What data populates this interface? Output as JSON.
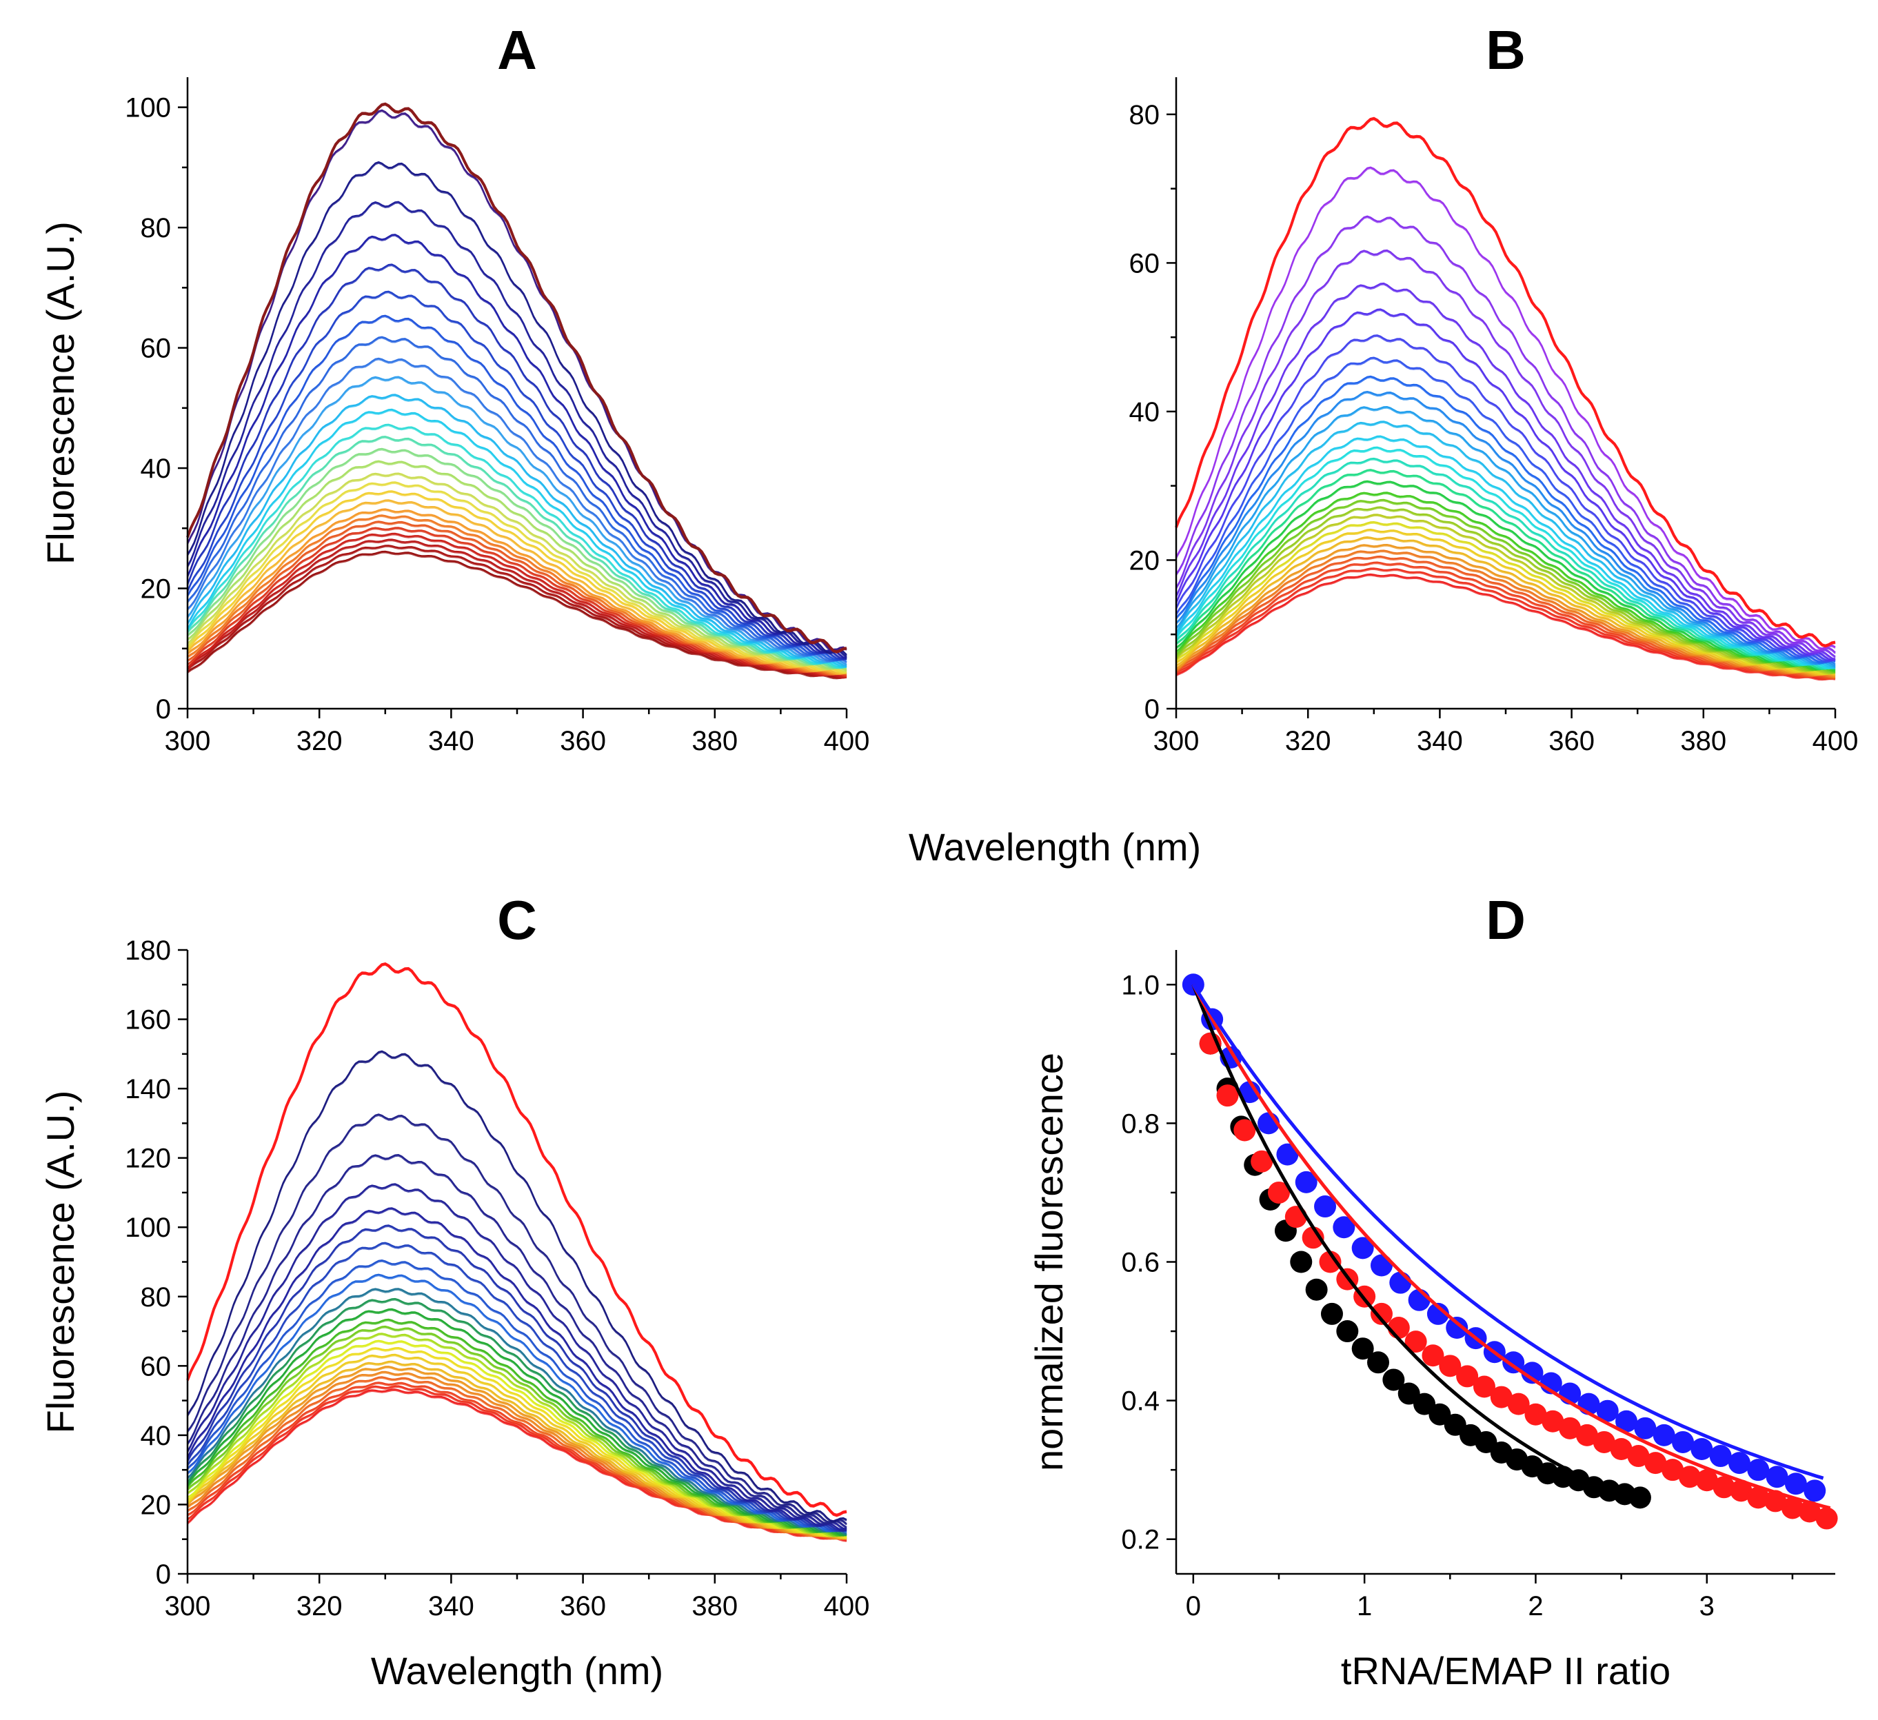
{
  "figure": {
    "shared_xlabel": "Wavelength (nm)"
  },
  "chart_data": [
    {
      "panel": "A",
      "type": "line",
      "title": "A",
      "xlabel": "",
      "ylabel": "Fluorescence (A.U.)",
      "xlim": [
        300,
        400
      ],
      "ylim": [
        0,
        105
      ],
      "xticks": [
        "300",
        "320",
        "340",
        "360",
        "380",
        "400"
      ],
      "yticks": [
        "0",
        "20",
        "40",
        "60",
        "80",
        "100"
      ],
      "peak_wavelength": 330,
      "curve_peaks": [
        100,
        99,
        90.5,
        84,
        78.5,
        73.5,
        69,
        65,
        61.5,
        58,
        55,
        52,
        49.5,
        47,
        45,
        43,
        41,
        39,
        37.5,
        36,
        34.5,
        33,
        32,
        31,
        30,
        29,
        28,
        27,
        26
      ],
      "curve_colors": [
        "#8b1a1a",
        "#3b1a8a",
        "#1a1a8a",
        "#1f1f9a",
        "#2020aa",
        "#2233bb",
        "#2244cc",
        "#2255dd",
        "#2a66e0",
        "#3377e6",
        "#33a0ee",
        "#22b8f0",
        "#22ccee",
        "#33ddd8",
        "#55e0b0",
        "#88e088",
        "#aae066",
        "#ccdd55",
        "#e6dd44",
        "#f2d033",
        "#f5b833",
        "#f59a2a",
        "#f07a26",
        "#e85a22",
        "#dd3a1f",
        "#cc221c",
        "#bb1a1a",
        "#aa1515",
        "#991111"
      ],
      "start_values": [
        28,
        27,
        25.5,
        24,
        22.5,
        21,
        19.5,
        18.5,
        17.5,
        16.5,
        15.5,
        14.5,
        13.5,
        13,
        12.5,
        12,
        11.5,
        11,
        10.5,
        10,
        9.5,
        9,
        8.5,
        8,
        7.5,
        7,
        6.8,
        6.5,
        6
      ],
      "end_values": [
        9.5,
        9.5,
        9,
        9,
        8.8,
        8.6,
        8.4,
        8.2,
        8,
        7.8,
        7.6,
        7.4,
        7.2,
        7,
        6.9,
        6.8,
        6.6,
        6.5,
        6.3,
        6.2,
        6,
        5.9,
        5.8,
        5.7,
        5.6,
        5.5,
        5.4,
        5.3,
        5.2
      ]
    },
    {
      "panel": "B",
      "type": "line",
      "title": "B",
      "xlabel": "",
      "ylabel": "",
      "xlim": [
        300,
        400
      ],
      "ylim": [
        0,
        85
      ],
      "xticks": [
        "300",
        "320",
        "340",
        "360",
        "380",
        "400"
      ],
      "yticks": [
        "0",
        "20",
        "40",
        "60",
        "80"
      ],
      "peak_wavelength": 330,
      "curve_peaks": [
        79,
        72.5,
        66,
        61.5,
        57,
        53.5,
        50,
        47,
        44.5,
        42.5,
        40.5,
        38.5,
        36.5,
        35,
        33.5,
        32,
        30.5,
        29,
        28,
        27,
        26,
        25,
        24,
        23,
        22,
        21.2,
        20.4,
        19.6,
        18.8,
        18
      ],
      "curve_colors": [
        "#ff1a1a",
        "#9a33ee",
        "#8833ee",
        "#7a33ee",
        "#6633ee",
        "#5533ee",
        "#4444ee",
        "#3355ee",
        "#2266ee",
        "#2288ee",
        "#22a0ee",
        "#22bbee",
        "#22ccee",
        "#22dde0",
        "#22ddbb",
        "#22dd88",
        "#22cc44",
        "#44cc22",
        "#77cc22",
        "#99cc22",
        "#bbcc22",
        "#dddd22",
        "#eecc22",
        "#eeb822",
        "#ee9922",
        "#ee7a22",
        "#ee5a22",
        "#ee4422",
        "#ee3322",
        "#ee2222"
      ],
      "start_values": [
        24,
        20,
        18,
        16.5,
        15.5,
        14.5,
        13.5,
        12.5,
        12,
        11.5,
        11,
        10.5,
        10,
        9.5,
        9,
        8.6,
        8.2,
        7.8,
        7.4,
        7,
        6.7,
        6.4,
        6.1,
        5.8,
        5.5,
        5.3,
        5.1,
        4.9,
        4.7,
        4.5
      ],
      "end_values": [
        8.5,
        8,
        7.6,
        7.3,
        7,
        6.8,
        6.6,
        6.4,
        6.2,
        6,
        5.9,
        5.8,
        5.7,
        5.6,
        5.5,
        5.4,
        5.3,
        5.2,
        5.1,
        5,
        4.9,
        4.8,
        4.7,
        4.6,
        4.5,
        4.4,
        4.3,
        4.2,
        4.1,
        4
      ]
    },
    {
      "panel": "C",
      "type": "line",
      "title": "C",
      "xlabel": "Wavelength (nm)",
      "ylabel": "Fluorescence (A.U.)",
      "xlim": [
        300,
        400
      ],
      "ylim": [
        0,
        180
      ],
      "xticks": [
        "300",
        "320",
        "340",
        "360",
        "380",
        "400"
      ],
      "yticks": [
        "0",
        "20",
        "40",
        "60",
        "80",
        "100",
        "120",
        "140",
        "160",
        "180"
      ],
      "peak_wavelength": 330,
      "curve_peaks": [
        175,
        150,
        132,
        120.5,
        112,
        105,
        100,
        95,
        90,
        86,
        82,
        79,
        76,
        73,
        71,
        69,
        67,
        65,
        63,
        61,
        59.5,
        58,
        56.5,
        55,
        54,
        53
      ],
      "curve_colors": [
        "#ff1a1a",
        "#1a1a80",
        "#22228a",
        "#222290",
        "#222299",
        "#2222a0",
        "#2233b0",
        "#2244c0",
        "#2255d0",
        "#2266dd",
        "#227799",
        "#229955",
        "#22aa33",
        "#44bb22",
        "#77cc22",
        "#aadd22",
        "#ddee22",
        "#eedd22",
        "#eecc22",
        "#eebb22",
        "#ee9922",
        "#ee8822",
        "#ee6622",
        "#ee4422",
        "#ee3322",
        "#ee2222"
      ],
      "start_values": [
        55,
        45,
        41,
        38,
        36,
        34,
        32.5,
        31,
        30,
        29,
        28,
        27,
        26,
        25,
        24,
        23,
        22,
        21.5,
        21,
        20.5,
        20,
        19,
        18,
        17,
        16,
        15
      ],
      "end_values": [
        17,
        15,
        14.5,
        14,
        13.5,
        13,
        12.8,
        12.6,
        12.4,
        12.2,
        12,
        11.8,
        11.6,
        11.4,
        11.2,
        11,
        10.9,
        10.8,
        10.7,
        10.6,
        10.5,
        10.4,
        10.3,
        10.2,
        10.1,
        10
      ]
    },
    {
      "panel": "D",
      "type": "scatter",
      "title": "D",
      "xlabel": "tRNA/EMAP II ratio",
      "ylabel": "normalized fluorescence",
      "xlim": [
        -0.1,
        3.75
      ],
      "ylim": [
        0.15,
        1.05
      ],
      "xticks": [
        "0",
        "1",
        "2",
        "3"
      ],
      "yticks": [
        "0.2",
        "0.4",
        "0.6",
        "0.8",
        "1.0"
      ],
      "series": [
        {
          "name": "black",
          "color": "#000000",
          "x": [
            0.1,
            0.2,
            0.28,
            0.36,
            0.45,
            0.54,
            0.63,
            0.72,
            0.81,
            0.9,
            0.99,
            1.08,
            1.17,
            1.26,
            1.35,
            1.44,
            1.53,
            1.62,
            1.71,
            1.8,
            1.89,
            1.98,
            2.07,
            2.16,
            2.25,
            2.34,
            2.43,
            2.52,
            2.61
          ],
          "y": [
            0.915,
            0.85,
            0.795,
            0.74,
            0.69,
            0.645,
            0.6,
            0.56,
            0.525,
            0.5,
            0.475,
            0.455,
            0.43,
            0.41,
            0.395,
            0.38,
            0.365,
            0.35,
            0.34,
            0.325,
            0.315,
            0.305,
            0.295,
            0.29,
            0.285,
            0.275,
            0.27,
            0.265,
            0.26
          ],
          "fit": {
            "k": 0.58,
            "xmin": 0.0,
            "xmax": 2.6
          }
        },
        {
          "name": "red",
          "color": "#ff1a1a",
          "x": [
            0.1,
            0.2,
            0.3,
            0.4,
            0.5,
            0.6,
            0.7,
            0.8,
            0.9,
            1.0,
            1.1,
            1.2,
            1.3,
            1.4,
            1.5,
            1.6,
            1.7,
            1.8,
            1.9,
            2.0,
            2.1,
            2.2,
            2.3,
            2.4,
            2.5,
            2.6,
            2.7,
            2.8,
            2.9,
            3.0,
            3.1,
            3.2,
            3.3,
            3.4,
            3.5,
            3.6,
            3.7
          ],
          "y": [
            0.915,
            0.84,
            0.79,
            0.745,
            0.7,
            0.665,
            0.635,
            0.6,
            0.575,
            0.55,
            0.525,
            0.505,
            0.485,
            0.465,
            0.45,
            0.435,
            0.42,
            0.405,
            0.395,
            0.38,
            0.37,
            0.36,
            0.35,
            0.34,
            0.33,
            0.32,
            0.31,
            0.3,
            0.29,
            0.285,
            0.275,
            0.27,
            0.26,
            0.255,
            0.245,
            0.24,
            0.23
          ],
          "fit": {
            "k": 0.42,
            "xmin": 0.0,
            "xmax": 3.72
          }
        },
        {
          "name": "blue",
          "color": "#1a1aff",
          "x": [
            0.0,
            0.11,
            0.22,
            0.33,
            0.44,
            0.55,
            0.66,
            0.77,
            0.88,
            0.99,
            1.1,
            1.21,
            1.32,
            1.43,
            1.54,
            1.65,
            1.76,
            1.87,
            1.98,
            2.09,
            2.2,
            2.31,
            2.42,
            2.53,
            2.64,
            2.75,
            2.86,
            2.97,
            3.08,
            3.19,
            3.3,
            3.41,
            3.52,
            3.63
          ],
          "y": [
            1.0,
            0.95,
            0.895,
            0.845,
            0.8,
            0.755,
            0.715,
            0.68,
            0.65,
            0.62,
            0.595,
            0.57,
            0.545,
            0.525,
            0.505,
            0.49,
            0.47,
            0.455,
            0.44,
            0.425,
            0.41,
            0.395,
            0.385,
            0.37,
            0.36,
            0.35,
            0.34,
            0.33,
            0.32,
            0.31,
            0.3,
            0.29,
            0.28,
            0.27
          ],
          "fit": {
            "k": 0.36,
            "xmin": 0.0,
            "xmax": 3.68
          }
        }
      ]
    }
  ]
}
